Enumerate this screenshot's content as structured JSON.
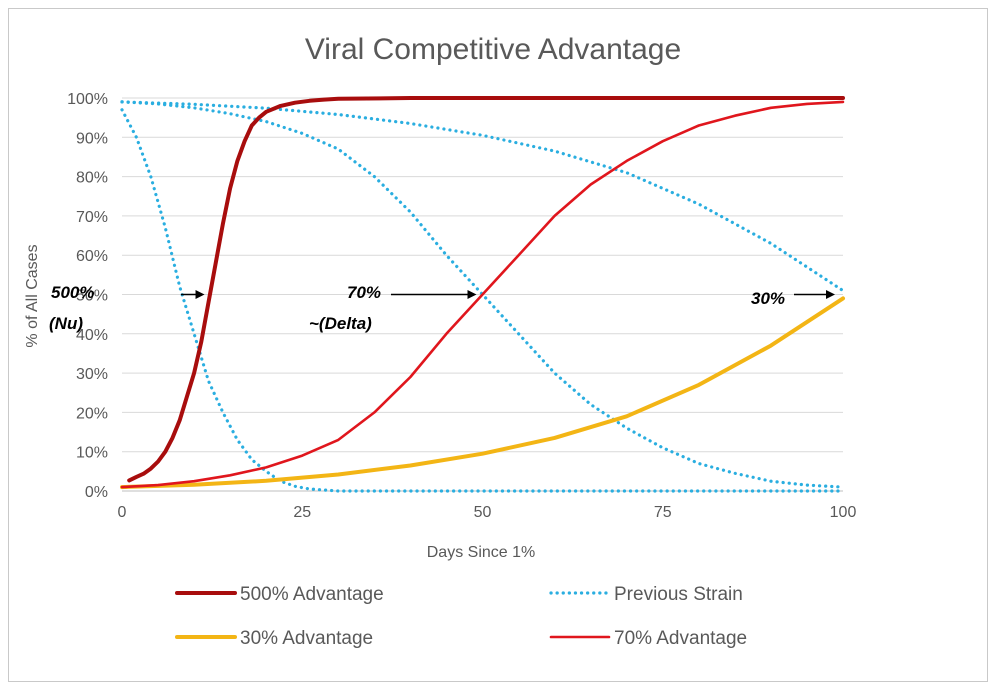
{
  "chart_data": {
    "type": "line",
    "title": "Viral Competitive Advantage",
    "xlabel": "Days Since 1%",
    "ylabel": "% of All Cases",
    "xlim": [
      0,
      100
    ],
    "ylim": [
      0,
      100
    ],
    "x_ticks": [
      "0",
      "25",
      "50",
      "75",
      "100"
    ],
    "y_ticks": [
      "0%",
      "10%",
      "20%",
      "30%",
      "40%",
      "50%",
      "60%",
      "70%",
      "80%",
      "90%",
      "100%"
    ],
    "grid": "horizontal",
    "legend_position": "bottom",
    "series": [
      {
        "name": "500% Advantage",
        "color": "#a80d0d",
        "style": "solid",
        "x": [
          1,
          2,
          3,
          4,
          5,
          6,
          7,
          8,
          9,
          10,
          11,
          12,
          13,
          14,
          15,
          16,
          17,
          18,
          19,
          20,
          22,
          24,
          26,
          28,
          30,
          40,
          50,
          60,
          70,
          80,
          90,
          100
        ],
        "y": [
          2.7,
          3.6,
          4.4,
          5.7,
          7.5,
          10,
          13.5,
          18,
          24,
          30,
          38,
          48,
          58,
          68,
          77,
          84,
          89,
          93,
          95,
          96.5,
          98,
          98.8,
          99.3,
          99.6,
          99.8,
          100,
          100,
          100,
          100,
          100,
          100,
          100
        ]
      },
      {
        "name": "70% Advantage",
        "color": "#e0161d",
        "style": "solid",
        "x": [
          0,
          5,
          10,
          15,
          20,
          25,
          30,
          35,
          40,
          45,
          50,
          55,
          60,
          65,
          70,
          75,
          80,
          85,
          90,
          95,
          100
        ],
        "y": [
          1,
          1.5,
          2.5,
          4,
          6,
          9,
          13,
          20,
          29,
          40,
          50,
          60,
          70,
          78,
          84,
          89,
          93,
          95.5,
          97.5,
          98.5,
          99
        ]
      },
      {
        "name": "30% Advantage",
        "color": "#f3b515",
        "style": "solid",
        "x": [
          0,
          10,
          20,
          30,
          40,
          50,
          60,
          70,
          80,
          90,
          100
        ],
        "y": [
          1,
          1.6,
          2.6,
          4.2,
          6.5,
          9.5,
          13.5,
          19,
          27,
          37,
          49
        ]
      },
      {
        "name": "Previous Strain",
        "color": "#2aaee0",
        "style": "dotted",
        "x": [
          0,
          2,
          4,
          6,
          8,
          10,
          12,
          14,
          16,
          18,
          20,
          22,
          24,
          26,
          30,
          40,
          50,
          60,
          70,
          80,
          90,
          100
        ],
        "y": [
          97,
          90,
          80,
          67,
          52,
          40,
          28,
          20,
          13,
          8,
          5,
          2.5,
          1.2,
          0.5,
          0,
          0,
          0,
          0,
          0,
          0,
          0,
          0
        ]
      },
      {
        "name": "Previous Strain",
        "color": "#2aaee0",
        "style": "dotted",
        "x": [
          0,
          5,
          10,
          15,
          20,
          25,
          30,
          35,
          40,
          45,
          50,
          55,
          60,
          65,
          70,
          75,
          80,
          85,
          90,
          95,
          100
        ],
        "y": [
          99,
          98.5,
          97.5,
          96,
          94,
          91,
          87,
          80,
          71,
          60,
          50,
          40,
          30,
          22,
          16,
          11,
          7,
          4.5,
          2.5,
          1.5,
          1
        ]
      },
      {
        "name": "Previous Strain",
        "color": "#2aaee0",
        "style": "dotted",
        "x": [
          0,
          10,
          20,
          30,
          40,
          50,
          60,
          70,
          80,
          90,
          100
        ],
        "y": [
          99,
          98.4,
          97.4,
          95.8,
          93.5,
          90.5,
          86.5,
          81,
          73,
          63,
          51
        ]
      }
    ],
    "annotations": [
      {
        "lines": [
          "500%",
          "(Nu)"
        ],
        "target_x": 12,
        "target_y": 50
      },
      {
        "lines": [
          "70%",
          "~(Delta)"
        ],
        "target_x": 50,
        "target_y": 50
      },
      {
        "lines": [
          "30%"
        ],
        "target_x": 100,
        "target_y": 50
      }
    ],
    "legend": [
      {
        "label": "500% Advantage",
        "color": "#a80d0d",
        "style": "solid"
      },
      {
        "label": "Previous Strain",
        "color": "#2aaee0",
        "style": "dotted"
      },
      {
        "label": "30% Advantage",
        "color": "#f3b515",
        "style": "solid"
      },
      {
        "label": "70% Advantage",
        "color": "#e0161d",
        "style": "solid"
      }
    ]
  }
}
